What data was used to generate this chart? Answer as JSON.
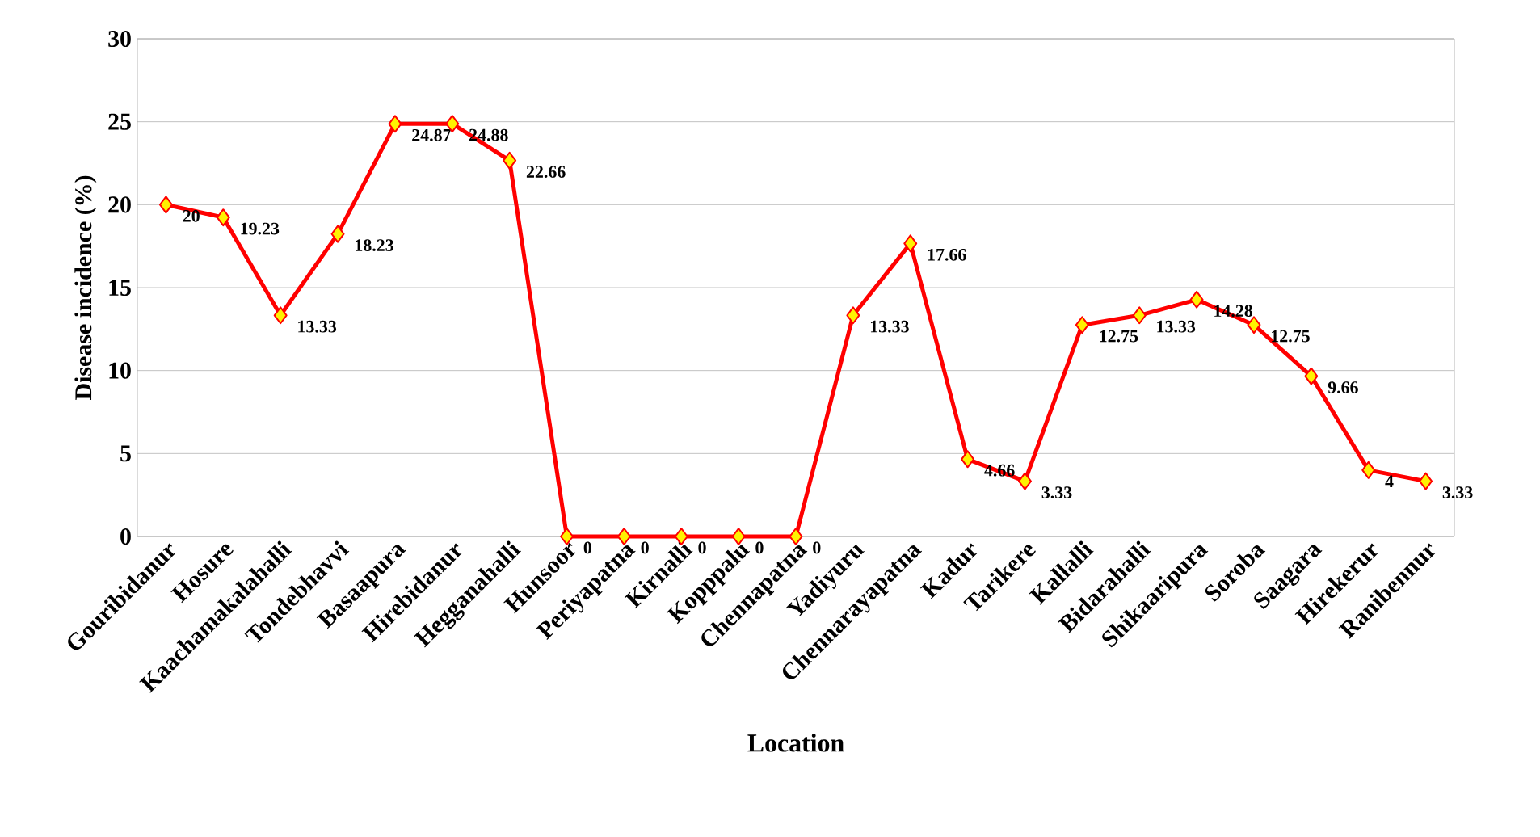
{
  "chart_data": {
    "type": "line",
    "xlabel": "Location",
    "ylabel": "Disease incidence (%)",
    "categories": [
      "Gouribidanur",
      "Hosure",
      "Kaachamakalahalli",
      "Tondebhavvi",
      "Basaapura",
      "Hirebidanur",
      "Hegganahalli",
      "Hunsoor",
      "Periyapatna",
      "Kirnalli",
      "Kopppalu",
      "Chennapatna",
      "Yadiyuru",
      "Chennarayapatna",
      "Kadur",
      "Tarikere",
      "Kallalli",
      "Bidarahalli",
      "Shikaaripura",
      "Soroba",
      "Saagara",
      "Hirekerur",
      "Ranibennur"
    ],
    "series": [
      {
        "color": "#ff0000",
        "values": [
          20,
          19.23,
          13.33,
          18.23,
          24.87,
          24.88,
          22.66,
          0,
          0,
          0,
          0,
          0,
          13.33,
          17.66,
          4.66,
          3.33,
          12.75,
          13.33,
          14.28,
          12.75,
          9.66,
          4,
          3.33
        ]
      }
    ],
    "ylim": [
      0,
      30
    ],
    "yticks": [
      0,
      5,
      10,
      15,
      20,
      25,
      30
    ],
    "grid": "y",
    "marker": "diamond",
    "line_style": "solid",
    "data_labels": true,
    "legend": false
  }
}
